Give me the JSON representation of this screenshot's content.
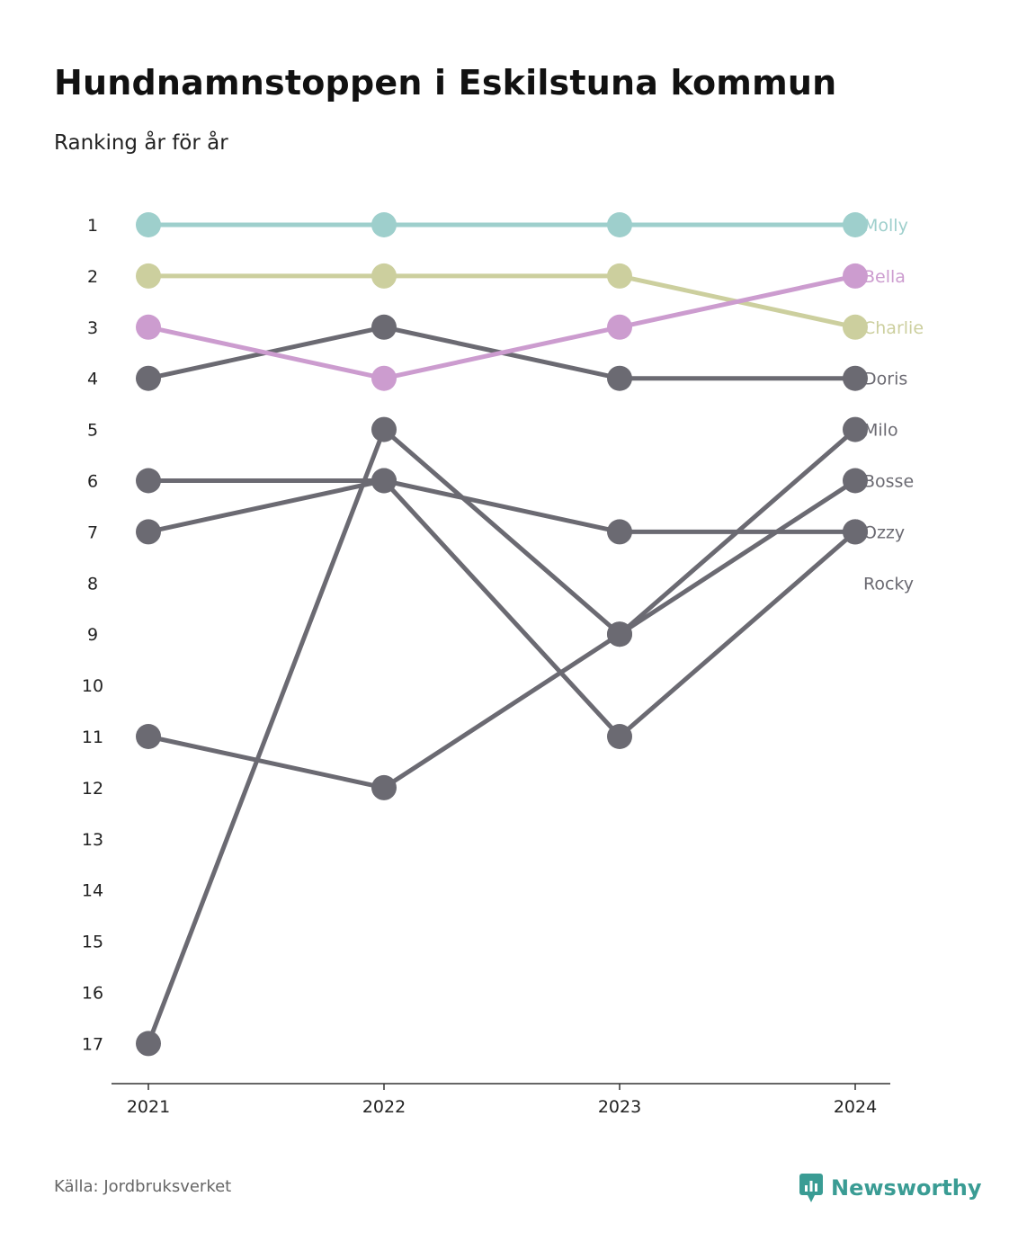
{
  "title": "Hundnamnstoppen i Eskilstuna kommun",
  "subtitle": "Ranking år för år",
  "source": "Källa: Jordbruksverket",
  "brand": {
    "name": "Newsworthy",
    "icon": "newsworthy-logo-icon",
    "color": "#3a9c94"
  },
  "chart_data": {
    "type": "line",
    "x": [
      "2021",
      "2022",
      "2023",
      "2024"
    ],
    "y_ticks": [
      "1",
      "2",
      "3",
      "4",
      "5",
      "6",
      "7",
      "8",
      "9",
      "10",
      "11",
      "12",
      "13",
      "14",
      "15",
      "16",
      "17"
    ],
    "ylim": [
      1,
      17
    ],
    "y_inverted": true,
    "grid": false,
    "legend": "end-labels-right",
    "series": [
      {
        "name": "Molly",
        "values": [
          1,
          1,
          1,
          1
        ],
        "color": "#9ecfcc"
      },
      {
        "name": "Charlie",
        "values": [
          2,
          2,
          2,
          3
        ],
        "color": "#cccf9e"
      },
      {
        "name": "Bella",
        "values": [
          3,
          4,
          3,
          2
        ],
        "color": "#cc9ccf"
      },
      {
        "name": "Doris",
        "values": [
          4,
          3,
          4,
          4
        ],
        "color": "#6b6a72"
      },
      {
        "name": "Milo",
        "values": [
          11,
          12,
          9,
          5
        ],
        "color": "#6b6a72"
      },
      {
        "name": "Bosse",
        "values": [
          17,
          5,
          9,
          6
        ],
        "color": "#6b6a72"
      },
      {
        "name": "Ozzy",
        "values": [
          6,
          6,
          7,
          7
        ],
        "color": "#6b6a72"
      },
      {
        "name": "Rocky",
        "values": [
          7,
          6,
          11,
          7
        ],
        "color": "#6b6a72"
      }
    ],
    "end_labels": [
      "Molly",
      "Bella",
      "Charlie",
      "Doris",
      "Milo",
      "Bosse",
      "Ozzy",
      "Rocky"
    ]
  }
}
